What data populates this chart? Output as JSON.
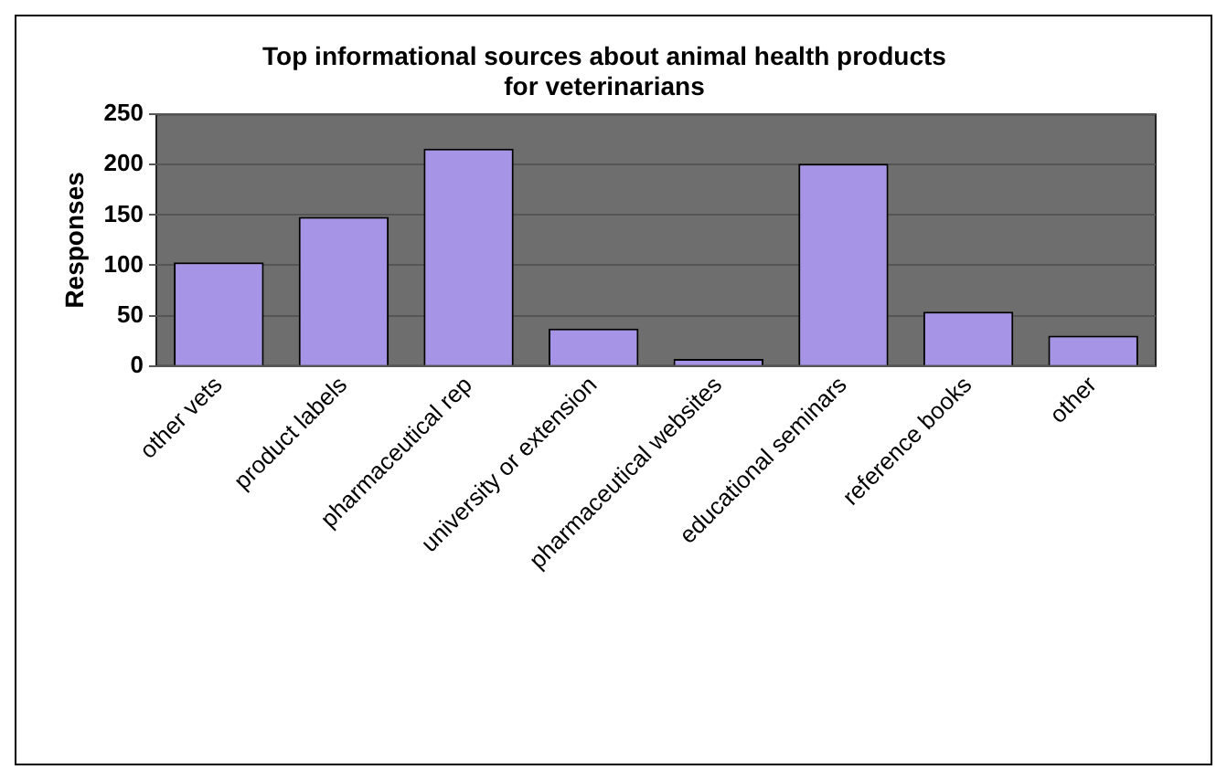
{
  "chart_data": {
    "type": "bar",
    "title": "Top informational sources about animal health products for veterinarians",
    "ylabel": "Responses",
    "categories": [
      "other vets",
      "product labels",
      "pharmaceutical rep",
      "university or extension",
      "pharmaceutical websites",
      "educational seminars",
      "reference books",
      "other"
    ],
    "values": [
      103,
      148,
      216,
      37,
      7,
      201,
      54,
      30
    ],
    "color": "#a694e6",
    "ylim": [
      0,
      250
    ],
    "yticks": [
      0,
      50,
      100,
      150,
      200,
      250
    ],
    "grid": "y",
    "legend": false
  }
}
